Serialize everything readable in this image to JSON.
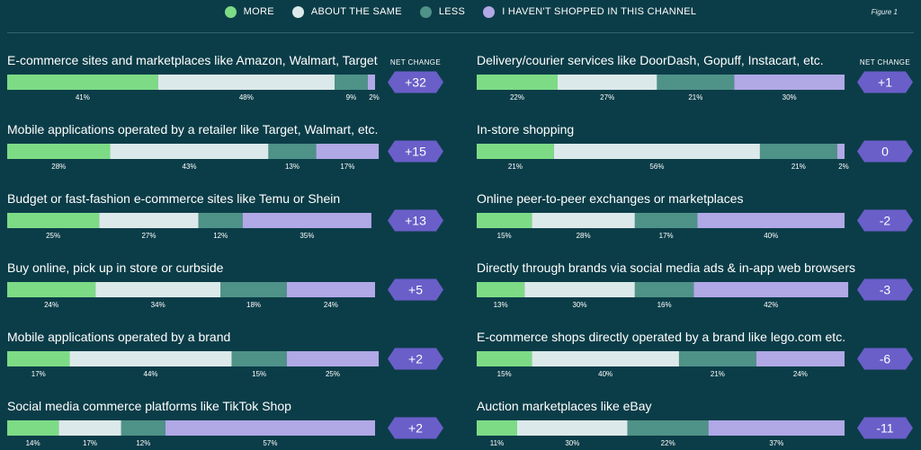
{
  "legend": [
    {
      "key": "more",
      "label": "MORE",
      "color": "#7ddb86"
    },
    {
      "key": "same",
      "label": "ABOUT THE SAME",
      "color": "#dce9ea"
    },
    {
      "key": "less",
      "label": "LESS",
      "color": "#4f9288"
    },
    {
      "key": "never",
      "label": "I HAVEN'T SHOPPED IN THIS CHANNEL",
      "color": "#b1a8e6"
    }
  ],
  "figure_label": "Figure 1",
  "net_change_label": "NET CHANGE",
  "badge_color": "#6a5ec9",
  "chart_data": {
    "type": "bar",
    "stacked": true,
    "orientation": "horizontal",
    "series_names": [
      "MORE",
      "ABOUT THE SAME",
      "LESS",
      "I HAVEN'T SHOPPED IN THIS CHANNEL"
    ],
    "rows": [
      {
        "label": "E-commerce sites and marketplaces like Amazon, Walmart, Target",
        "values": [
          41,
          48,
          9,
          2
        ],
        "net": "+32"
      },
      {
        "label": "Mobile applications operated by a retailer like Target, Walmart, etc.",
        "values": [
          28,
          43,
          13,
          17
        ],
        "net": "+15"
      },
      {
        "label": "Budget or fast-fashion e-commerce sites like Temu or Shein",
        "values": [
          25,
          27,
          12,
          35
        ],
        "net": "+13"
      },
      {
        "label": "Buy online, pick up in store or curbside",
        "values": [
          24,
          34,
          18,
          24
        ],
        "net": "+5"
      },
      {
        "label": "Mobile applications operated by a brand",
        "values": [
          17,
          44,
          15,
          25
        ],
        "net": "+2"
      },
      {
        "label": "Social media commerce platforms like TikTok Shop",
        "values": [
          14,
          17,
          12,
          57
        ],
        "net": "+2"
      },
      {
        "label": "Delivery/courier services like DoorDash, Gopuff, Instacart, etc.",
        "values": [
          22,
          27,
          21,
          30
        ],
        "net": "+1"
      },
      {
        "label": "In-store shopping",
        "values": [
          21,
          56,
          21,
          2
        ],
        "net": "0"
      },
      {
        "label": "Online peer-to-peer exchanges or marketplaces",
        "values": [
          15,
          28,
          17,
          40
        ],
        "net": "-2"
      },
      {
        "label": "Directly through brands via social media ads & in-app web browsers",
        "values": [
          13,
          30,
          16,
          42
        ],
        "net": "-3"
      },
      {
        "label": "E-commerce shops directly operated by a brand like lego.com etc.",
        "values": [
          15,
          40,
          21,
          24
        ],
        "net": "-6"
      },
      {
        "label": "Auction marketplaces like eBay",
        "values": [
          11,
          30,
          22,
          37
        ],
        "net": "-11"
      }
    ]
  }
}
